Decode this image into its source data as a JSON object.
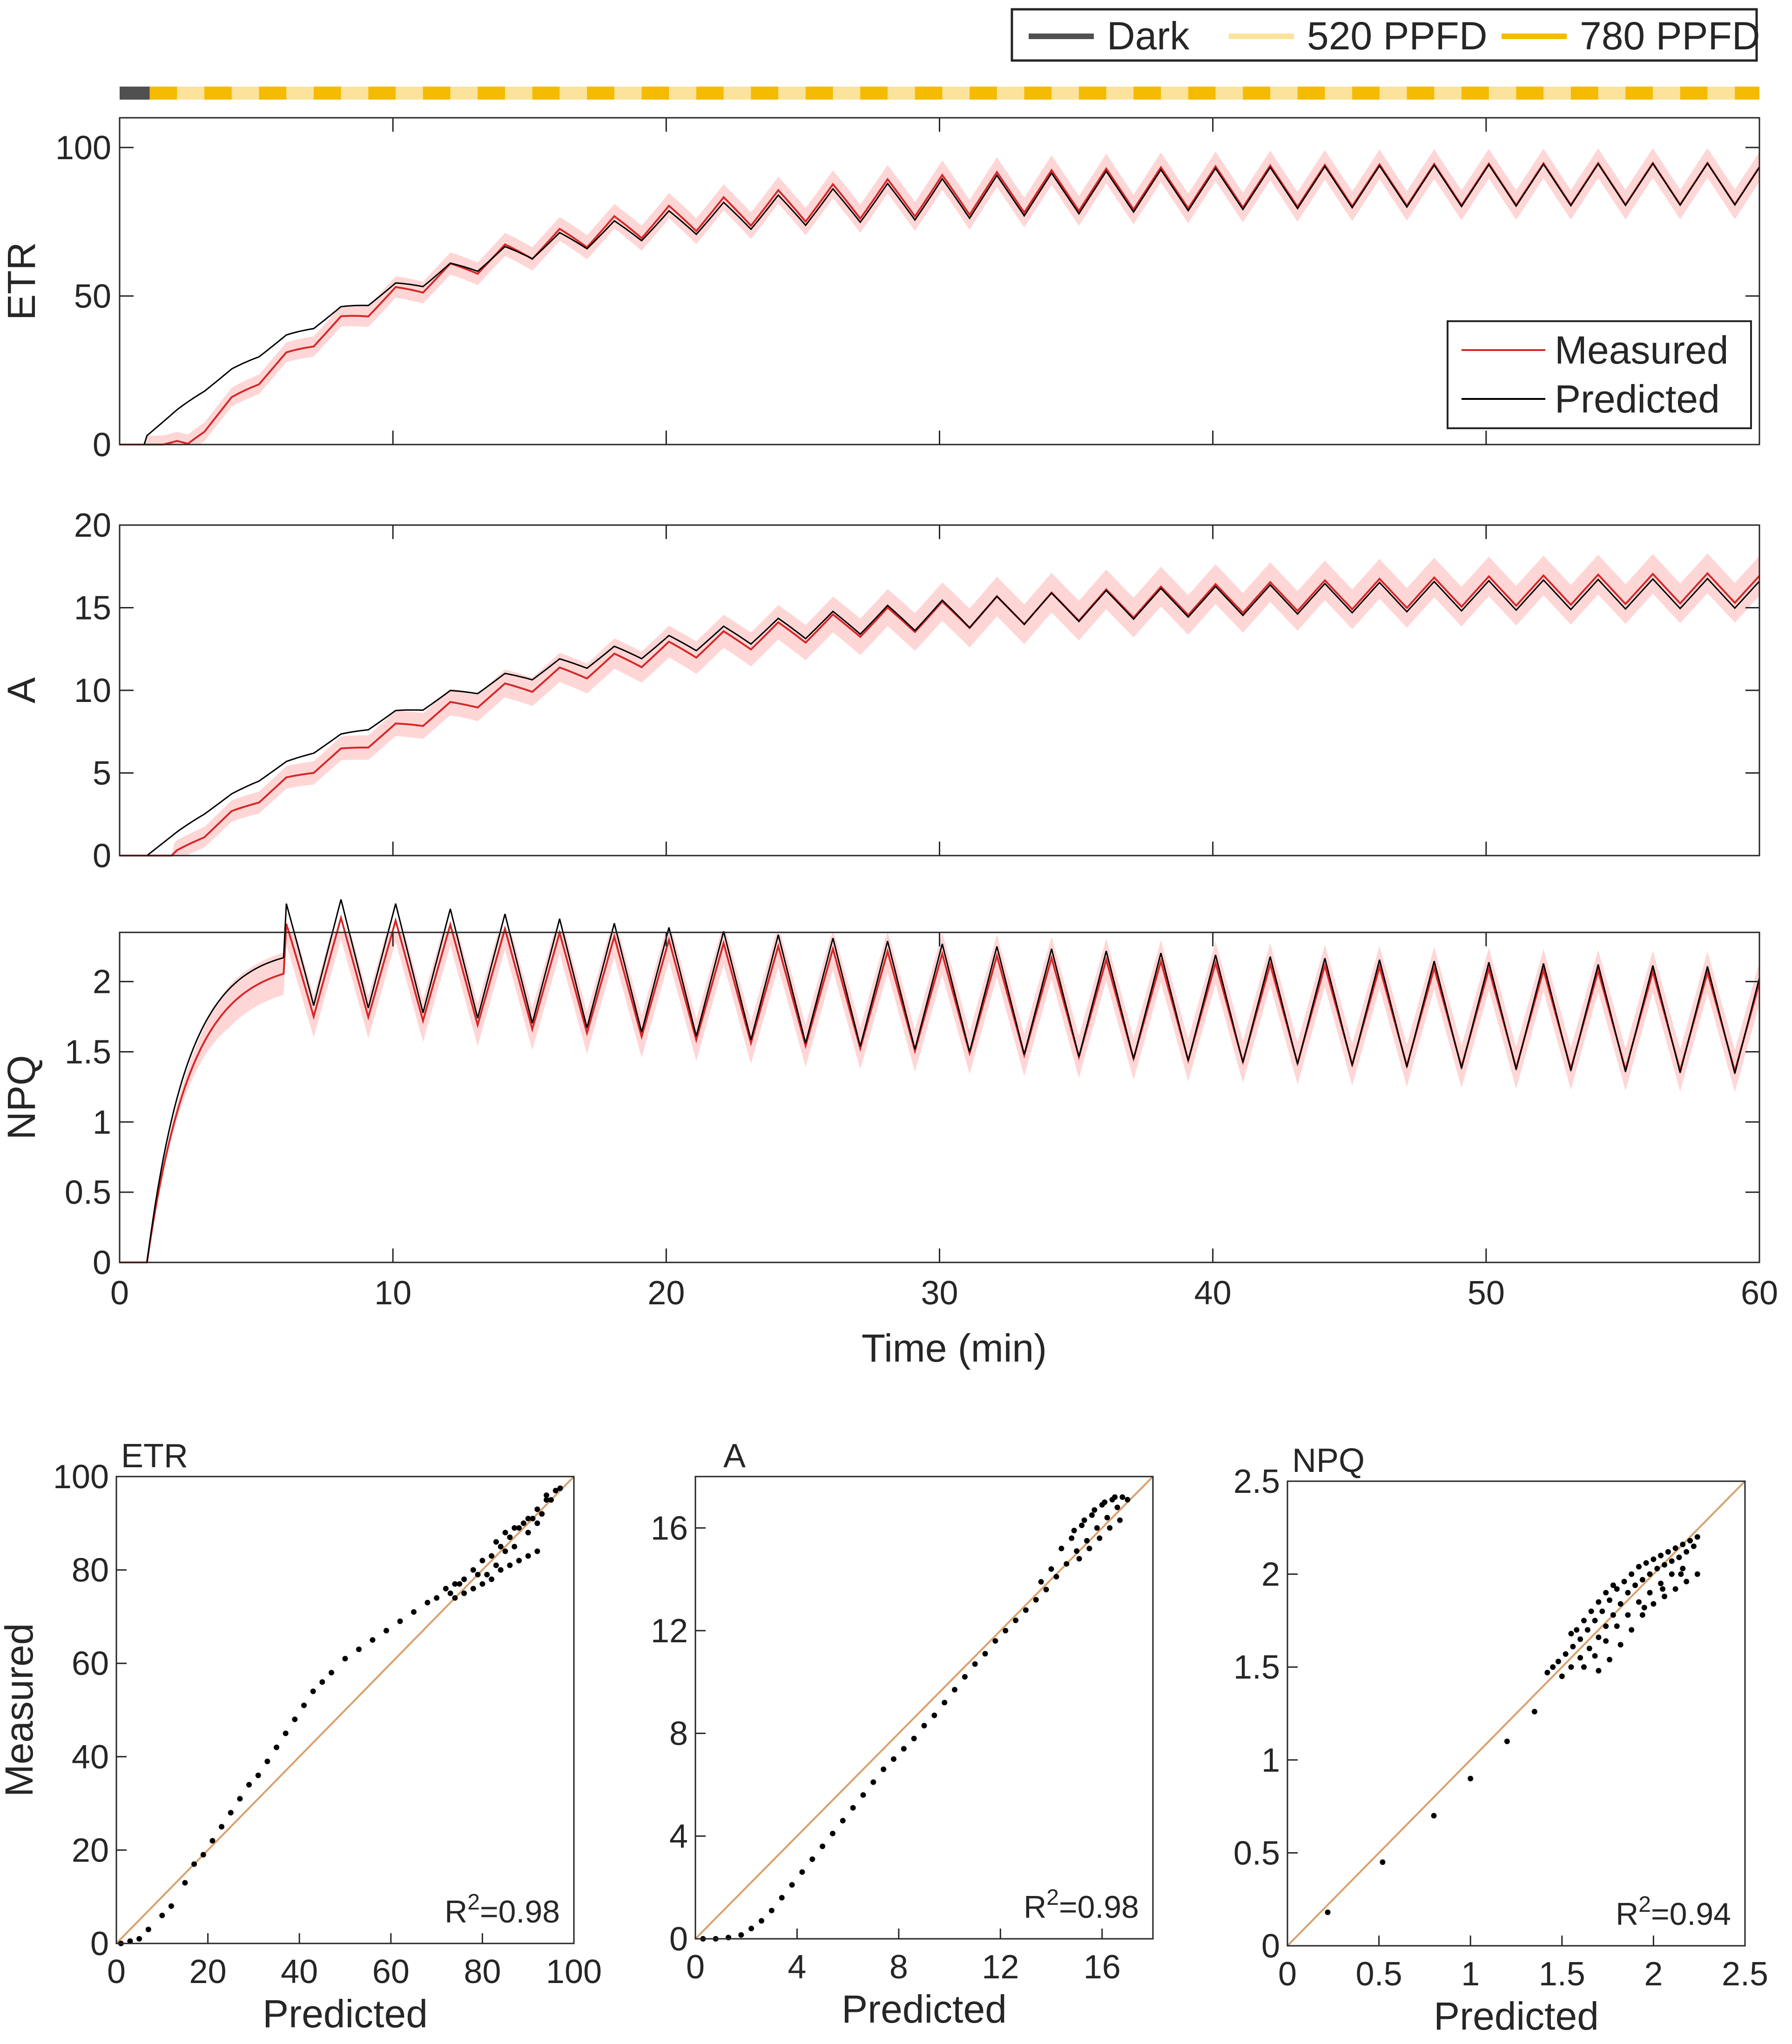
{
  "legend_top": {
    "entries": [
      {
        "label": "Dark",
        "color": "#505050"
      },
      {
        "label": "520 PPFD",
        "color": "#fbe39b"
      },
      {
        "label": "780 PPFD",
        "color": "#f5bb00"
      }
    ]
  },
  "light_bar": {
    "dark_until_min": 1.1,
    "period_min": 2,
    "high_first_min": 1.1,
    "high_duration_min": 1
  },
  "chart_data": [
    {
      "type": "line",
      "panel": "ETR",
      "ylabel": "ETR",
      "xlabel": "Time (min)",
      "xlim": [
        0,
        60
      ],
      "ylim": [
        0,
        110
      ],
      "yticks": [
        0,
        50,
        100
      ],
      "xticks": [
        0,
        10,
        20,
        30,
        40,
        50,
        60
      ],
      "legend": {
        "entries": [
          "Measured",
          "Predicted"
        ],
        "placement": "right"
      },
      "series": [
        {
          "name": "Measured",
          "color": "#d62728",
          "band_color": "#ffd6d6",
          "model": {
            "t0": 1,
            "delay": 1.5,
            "max": 88,
            "tau": 9,
            "amp_start": 1,
            "amp_end": 7,
            "band_start": 3,
            "band_end": 5
          }
        },
        {
          "name": "Predicted",
          "color": "#000000",
          "model": {
            "t0": 1,
            "delay": 0,
            "start": 3,
            "max": 88,
            "tau": 10.5,
            "amp_start": 0,
            "amp_end": 7
          }
        }
      ]
    },
    {
      "type": "line",
      "panel": "A",
      "ylabel": "A",
      "xlabel": "Time (min)",
      "xlim": [
        0,
        60
      ],
      "ylim": [
        0,
        20
      ],
      "yticks": [
        0,
        5,
        10,
        15,
        20
      ],
      "xticks": [
        0,
        10,
        20,
        30,
        40,
        50,
        60
      ],
      "series": [
        {
          "name": "Measured",
          "color": "#d62728",
          "band_color": "#ffd6d6",
          "model": {
            "t0": 2,
            "delay": 0,
            "max": 16.4,
            "tau": 13,
            "amp_start": 0.2,
            "amp_end": 0.9,
            "band_start": 0.6,
            "band_end": 1.2
          }
        },
        {
          "name": "Predicted",
          "color": "#000000",
          "model": {
            "t0": 1,
            "delay": 0,
            "max": 16.0,
            "tau": 12,
            "amp_start": 0,
            "amp_end": 0.9
          }
        }
      ]
    },
    {
      "type": "line",
      "panel": "NPQ",
      "ylabel": "NPQ",
      "xlabel": "Time (min)",
      "xlim": [
        0,
        60
      ],
      "ylim": [
        0,
        2.35
      ],
      "yticks": [
        0,
        0.5,
        1,
        1.5,
        2
      ],
      "xticks": [
        0,
        10,
        20,
        30,
        40,
        50,
        60
      ],
      "series": [
        {
          "name": "Measured",
          "color": "#d62728",
          "band_color": "#ffd6d6",
          "model": {
            "t0": 1,
            "rise_tau": 1.6,
            "peak": 2.15,
            "settle": 1.65,
            "settle_tau": 25,
            "amp": 0.35,
            "band": 0.15
          }
        },
        {
          "name": "Predicted",
          "color": "#000000",
          "model": {
            "t0": 1,
            "rise_tau": 1.5,
            "peak": 2.25,
            "settle": 1.65,
            "settle_tau": 25,
            "amp": 0.38
          }
        }
      ]
    },
    {
      "type": "scatter",
      "panel": "ETR",
      "title": "ETR",
      "xlabel": "Predicted",
      "ylabel": "Measured",
      "xlim": [
        0,
        100
      ],
      "ylim": [
        0,
        100
      ],
      "xticks": [
        0,
        20,
        40,
        60,
        80,
        100
      ],
      "yticks": [
        0,
        20,
        40,
        60,
        80,
        100
      ],
      "annotation": "R",
      "annotation_sup": "2",
      "annotation_value": "=0.98",
      "points": [
        [
          1,
          0
        ],
        [
          3,
          0.5
        ],
        [
          5,
          1
        ],
        [
          7,
          3
        ],
        [
          10,
          6
        ],
        [
          12,
          8
        ],
        [
          15,
          13
        ],
        [
          17,
          17
        ],
        [
          19,
          19
        ],
        [
          21,
          22
        ],
        [
          23,
          25
        ],
        [
          25,
          28
        ],
        [
          27,
          31
        ],
        [
          29,
          34
        ],
        [
          31,
          36
        ],
        [
          33,
          39
        ],
        [
          35,
          42
        ],
        [
          37,
          45
        ],
        [
          39,
          48
        ],
        [
          41,
          51
        ],
        [
          43,
          54
        ],
        [
          45,
          56
        ],
        [
          47,
          58
        ],
        [
          50,
          61
        ],
        [
          53,
          63
        ],
        [
          56,
          65
        ],
        [
          59,
          67
        ],
        [
          62,
          69
        ],
        [
          65,
          71
        ],
        [
          68,
          73
        ],
        [
          70,
          74
        ],
        [
          72,
          76
        ],
        [
          74,
          77
        ],
        [
          76,
          78
        ],
        [
          78,
          80
        ],
        [
          80,
          82
        ],
        [
          82,
          83
        ],
        [
          84,
          85
        ],
        [
          86,
          87
        ],
        [
          88,
          89
        ],
        [
          90,
          91
        ],
        [
          92,
          93
        ],
        [
          94,
          95
        ],
        [
          96,
          97
        ],
        [
          97,
          97.5
        ],
        [
          78,
          76
        ],
        [
          80,
          77
        ],
        [
          82,
          78
        ],
        [
          84,
          80
        ],
        [
          86,
          81
        ],
        [
          88,
          82
        ],
        [
          90,
          83
        ],
        [
          92,
          84
        ],
        [
          76,
          75
        ],
        [
          79,
          79
        ],
        [
          83,
          86
        ],
        [
          87,
          89
        ],
        [
          89,
          90
        ],
        [
          91,
          91
        ],
        [
          93,
          92
        ],
        [
          95,
          95
        ],
        [
          85,
          84
        ],
        [
          87,
          85
        ],
        [
          74,
          74
        ],
        [
          75,
          77
        ],
        [
          73,
          75
        ],
        [
          81,
          79
        ],
        [
          83,
          81
        ],
        [
          85,
          88
        ],
        [
          90,
          88
        ],
        [
          92,
          90
        ],
        [
          94,
          96
        ]
      ]
    },
    {
      "type": "scatter",
      "panel": "A",
      "title": "A",
      "xlabel": "Predicted",
      "ylabel": "",
      "xlim": [
        0,
        18
      ],
      "ylim": [
        0,
        18
      ],
      "xticks": [
        0,
        4,
        8,
        12,
        16
      ],
      "yticks": [
        0,
        4,
        8,
        12,
        16
      ],
      "annotation": "R",
      "annotation_sup": "2",
      "annotation_value": "=0.98",
      "points": [
        [
          0.3,
          0
        ],
        [
          0.8,
          0
        ],
        [
          1.3,
          0.05
        ],
        [
          1.8,
          0.15
        ],
        [
          2.2,
          0.4
        ],
        [
          2.6,
          0.7
        ],
        [
          3.0,
          1.1
        ],
        [
          3.4,
          1.6
        ],
        [
          3.8,
          2.1
        ],
        [
          4.2,
          2.6
        ],
        [
          4.6,
          3.1
        ],
        [
          5.0,
          3.6
        ],
        [
          5.4,
          4.1
        ],
        [
          5.8,
          4.6
        ],
        [
          6.2,
          5.1
        ],
        [
          6.6,
          5.6
        ],
        [
          7.0,
          6.1
        ],
        [
          7.4,
          6.6
        ],
        [
          7.8,
          7.0
        ],
        [
          8.2,
          7.4
        ],
        [
          8.6,
          7.8
        ],
        [
          9.0,
          8.3
        ],
        [
          9.4,
          8.7
        ],
        [
          9.8,
          9.2
        ],
        [
          10.2,
          9.7
        ],
        [
          10.6,
          10.2
        ],
        [
          11.0,
          10.7
        ],
        [
          11.4,
          11.1
        ],
        [
          11.8,
          11.6
        ],
        [
          12.2,
          12.0
        ],
        [
          12.6,
          12.4
        ],
        [
          13.0,
          12.8
        ],
        [
          13.4,
          13.2
        ],
        [
          13.8,
          13.6
        ],
        [
          14.2,
          14.1
        ],
        [
          14.6,
          14.6
        ],
        [
          15.0,
          15.1
        ],
        [
          15.4,
          15.5
        ],
        [
          15.8,
          16.0
        ],
        [
          16.2,
          16.4
        ],
        [
          16.6,
          16.8
        ],
        [
          17.0,
          17.1
        ],
        [
          14.4,
          15.2
        ],
        [
          14.8,
          15.6
        ],
        [
          15.2,
          16.1
        ],
        [
          15.6,
          16.5
        ],
        [
          16.0,
          16.9
        ],
        [
          16.4,
          17.1
        ],
        [
          16.8,
          17.2
        ],
        [
          15.1,
          14.8
        ],
        [
          15.5,
          15.2
        ],
        [
          15.9,
          15.6
        ],
        [
          16.3,
          16.0
        ],
        [
          16.7,
          16.3
        ],
        [
          14.9,
          15.9
        ],
        [
          15.3,
          16.3
        ],
        [
          15.7,
          16.7
        ],
        [
          16.1,
          17.0
        ],
        [
          16.5,
          17.2
        ],
        [
          13.6,
          13.9
        ],
        [
          14.0,
          14.4
        ]
      ]
    },
    {
      "type": "scatter",
      "panel": "NPQ",
      "title": "NPQ",
      "xlabel": "Predicted",
      "ylabel": "",
      "xlim": [
        0,
        2.5
      ],
      "ylim": [
        0,
        2.5
      ],
      "xticks": [
        0,
        0.5,
        1,
        1.5,
        2,
        2.5
      ],
      "yticks": [
        0,
        0.5,
        1,
        1.5,
        2,
        2.5
      ],
      "annotation": "R",
      "annotation_sup": "2",
      "annotation_value": "=0.94",
      "points": [
        [
          0.22,
          0.18
        ],
        [
          0.52,
          0.45
        ],
        [
          0.8,
          0.7
        ],
        [
          1.0,
          0.9
        ],
        [
          1.2,
          1.1
        ],
        [
          1.35,
          1.26
        ],
        [
          1.42,
          1.47
        ],
        [
          1.45,
          1.5
        ],
        [
          1.48,
          1.53
        ],
        [
          1.52,
          1.57
        ],
        [
          1.56,
          1.61
        ],
        [
          1.6,
          1.65
        ],
        [
          1.64,
          1.7
        ],
        [
          1.68,
          1.75
        ],
        [
          1.72,
          1.8
        ],
        [
          1.76,
          1.86
        ],
        [
          1.8,
          1.92
        ],
        [
          1.84,
          1.96
        ],
        [
          1.88,
          2.0
        ],
        [
          1.92,
          2.04
        ],
        [
          1.96,
          2.06
        ],
        [
          2.0,
          2.08
        ],
        [
          2.04,
          2.1
        ],
        [
          2.08,
          2.12
        ],
        [
          2.12,
          2.14
        ],
        [
          2.16,
          2.16
        ],
        [
          2.2,
          2.18
        ],
        [
          2.24,
          2.2
        ],
        [
          1.5,
          1.45
        ],
        [
          1.55,
          1.5
        ],
        [
          1.6,
          1.55
        ],
        [
          1.65,
          1.6
        ],
        [
          1.7,
          1.66
        ],
        [
          1.74,
          1.72
        ],
        [
          1.78,
          1.78
        ],
        [
          1.82,
          1.84
        ],
        [
          1.86,
          1.9
        ],
        [
          1.9,
          1.94
        ],
        [
          1.94,
          1.97
        ],
        [
          1.98,
          2.0
        ],
        [
          2.02,
          2.03
        ],
        [
          2.06,
          2.05
        ],
        [
          2.1,
          2.07
        ],
        [
          2.14,
          2.09
        ],
        [
          2.18,
          2.12
        ],
        [
          2.22,
          2.15
        ],
        [
          1.62,
          1.5
        ],
        [
          1.68,
          1.56
        ],
        [
          1.74,
          1.64
        ],
        [
          1.8,
          1.72
        ],
        [
          1.86,
          1.78
        ],
        [
          1.92,
          1.85
        ],
        [
          1.98,
          1.9
        ],
        [
          2.04,
          1.95
        ],
        [
          2.1,
          2.0
        ],
        [
          2.16,
          2.03
        ],
        [
          1.7,
          1.48
        ],
        [
          1.76,
          1.54
        ],
        [
          1.82,
          1.62
        ],
        [
          1.88,
          1.7
        ],
        [
          1.94,
          1.78
        ],
        [
          2.0,
          1.84
        ],
        [
          2.06,
          1.88
        ],
        [
          2.12,
          1.92
        ],
        [
          2.18,
          1.96
        ],
        [
          2.24,
          2.0
        ],
        [
          1.58,
          1.7
        ],
        [
          1.62,
          1.75
        ],
        [
          1.66,
          1.8
        ],
        [
          1.7,
          1.85
        ],
        [
          1.74,
          1.9
        ],
        [
          1.78,
          1.94
        ],
        [
          1.55,
          1.68
        ],
        [
          1.95,
          1.82
        ],
        [
          2.05,
          1.92
        ],
        [
          2.15,
          2.0
        ]
      ]
    }
  ]
}
